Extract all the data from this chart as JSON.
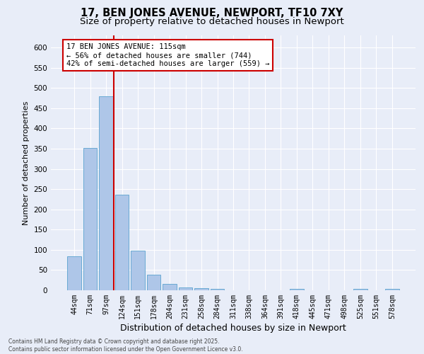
{
  "title": "17, BEN JONES AVENUE, NEWPORT, TF10 7XY",
  "subtitle": "Size of property relative to detached houses in Newport",
  "xlabel": "Distribution of detached houses by size in Newport",
  "ylabel": "Number of detached properties",
  "categories": [
    "44sqm",
    "71sqm",
    "97sqm",
    "124sqm",
    "151sqm",
    "178sqm",
    "204sqm",
    "231sqm",
    "258sqm",
    "284sqm",
    "311sqm",
    "338sqm",
    "364sqm",
    "391sqm",
    "418sqm",
    "445sqm",
    "471sqm",
    "498sqm",
    "525sqm",
    "551sqm",
    "578sqm"
  ],
  "values": [
    84,
    352,
    480,
    236,
    98,
    38,
    16,
    7,
    6,
    4,
    0,
    0,
    0,
    0,
    4,
    0,
    0,
    0,
    4,
    0,
    4
  ],
  "bar_color": "#aec6e8",
  "bar_edge_color": "#6aaad4",
  "red_line_x": 2.5,
  "annotation_text": "17 BEN JONES AVENUE: 115sqm\n← 56% of detached houses are smaller (744)\n42% of semi-detached houses are larger (559) →",
  "annotation_box_color": "#ffffff",
  "annotation_box_edge_color": "#cc0000",
  "ylim": [
    0,
    630
  ],
  "yticks": [
    0,
    50,
    100,
    150,
    200,
    250,
    300,
    350,
    400,
    450,
    500,
    550,
    600
  ],
  "background_color": "#e8edf8",
  "plot_background_color": "#e8edf8",
  "footer_line1": "Contains HM Land Registry data © Crown copyright and database right 2025.",
  "footer_line2": "Contains public sector information licensed under the Open Government Licence v3.0.",
  "title_fontsize": 10.5,
  "subtitle_fontsize": 9.5,
  "grid_color": "#ffffff",
  "red_line_color": "#cc0000",
  "ylabel_fontsize": 8,
  "xlabel_fontsize": 9,
  "tick_fontsize": 7,
  "ytick_fontsize": 7.5
}
